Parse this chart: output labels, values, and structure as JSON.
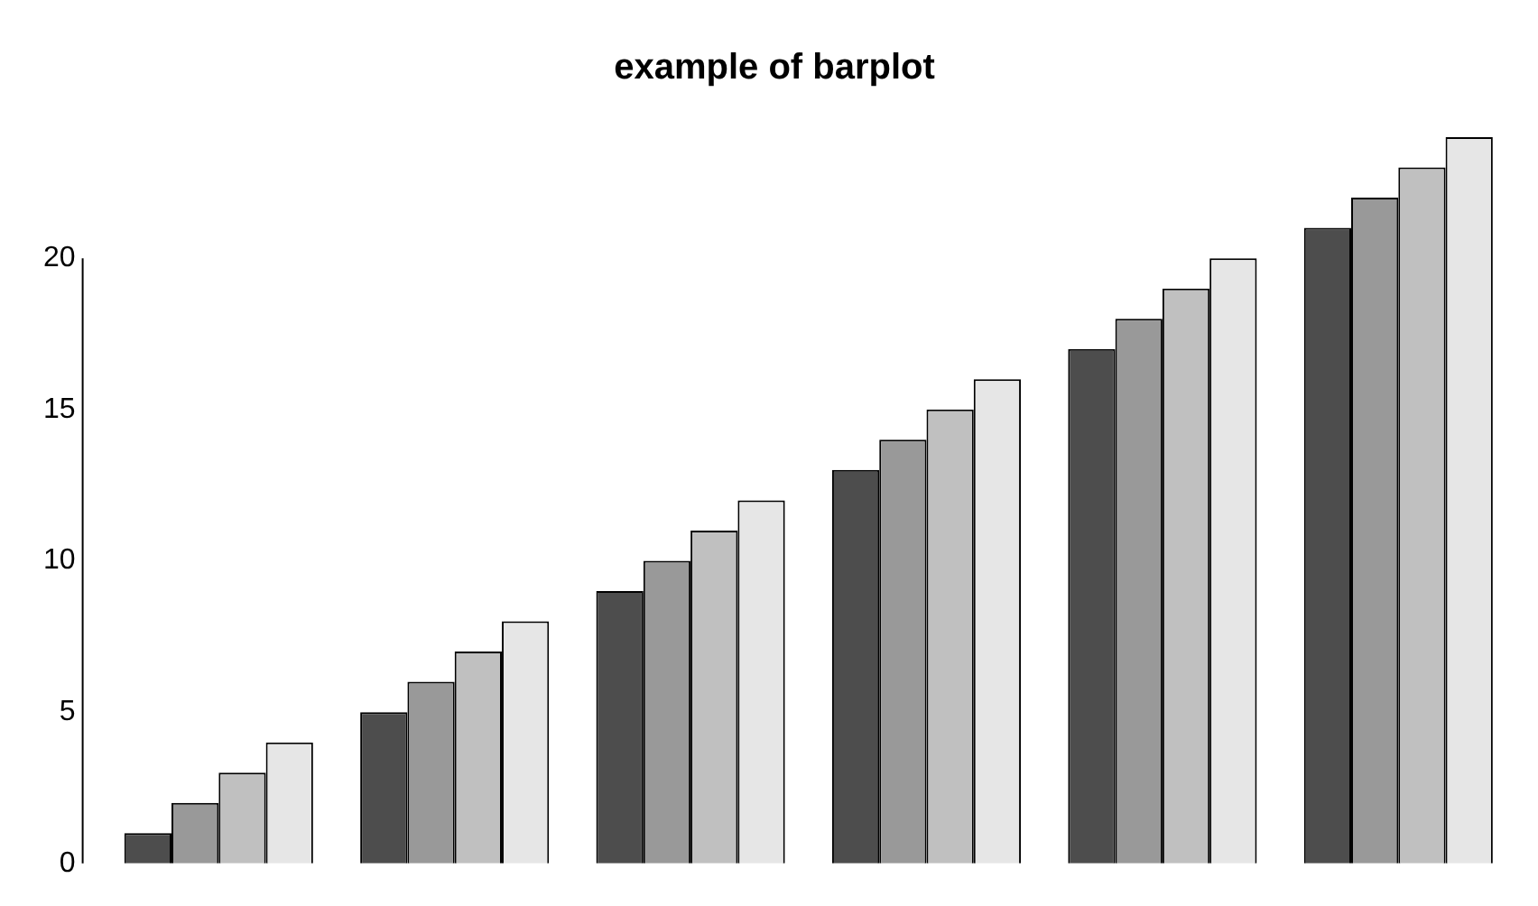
{
  "chart_data": {
    "type": "bar",
    "title": "example of barplot",
    "categories": [
      null,
      null,
      null,
      null,
      null,
      null
    ],
    "series": [
      {
        "color": "#4d4d4d",
        "values": [
          1,
          5,
          9,
          13,
          17,
          21
        ]
      },
      {
        "color": "#999999",
        "values": [
          2,
          6,
          10,
          14,
          18,
          22
        ]
      },
      {
        "color": "#c0c0c0",
        "values": [
          3,
          7,
          11,
          15,
          19,
          23
        ]
      },
      {
        "color": "#e6e6e6",
        "values": [
          4,
          8,
          12,
          16,
          20,
          24
        ]
      }
    ],
    "ylim": [
      0,
      24
    ],
    "yticks": [
      0,
      5,
      10,
      15,
      20
    ],
    "tick_labels": "y",
    "grid": false,
    "legend": false
  }
}
